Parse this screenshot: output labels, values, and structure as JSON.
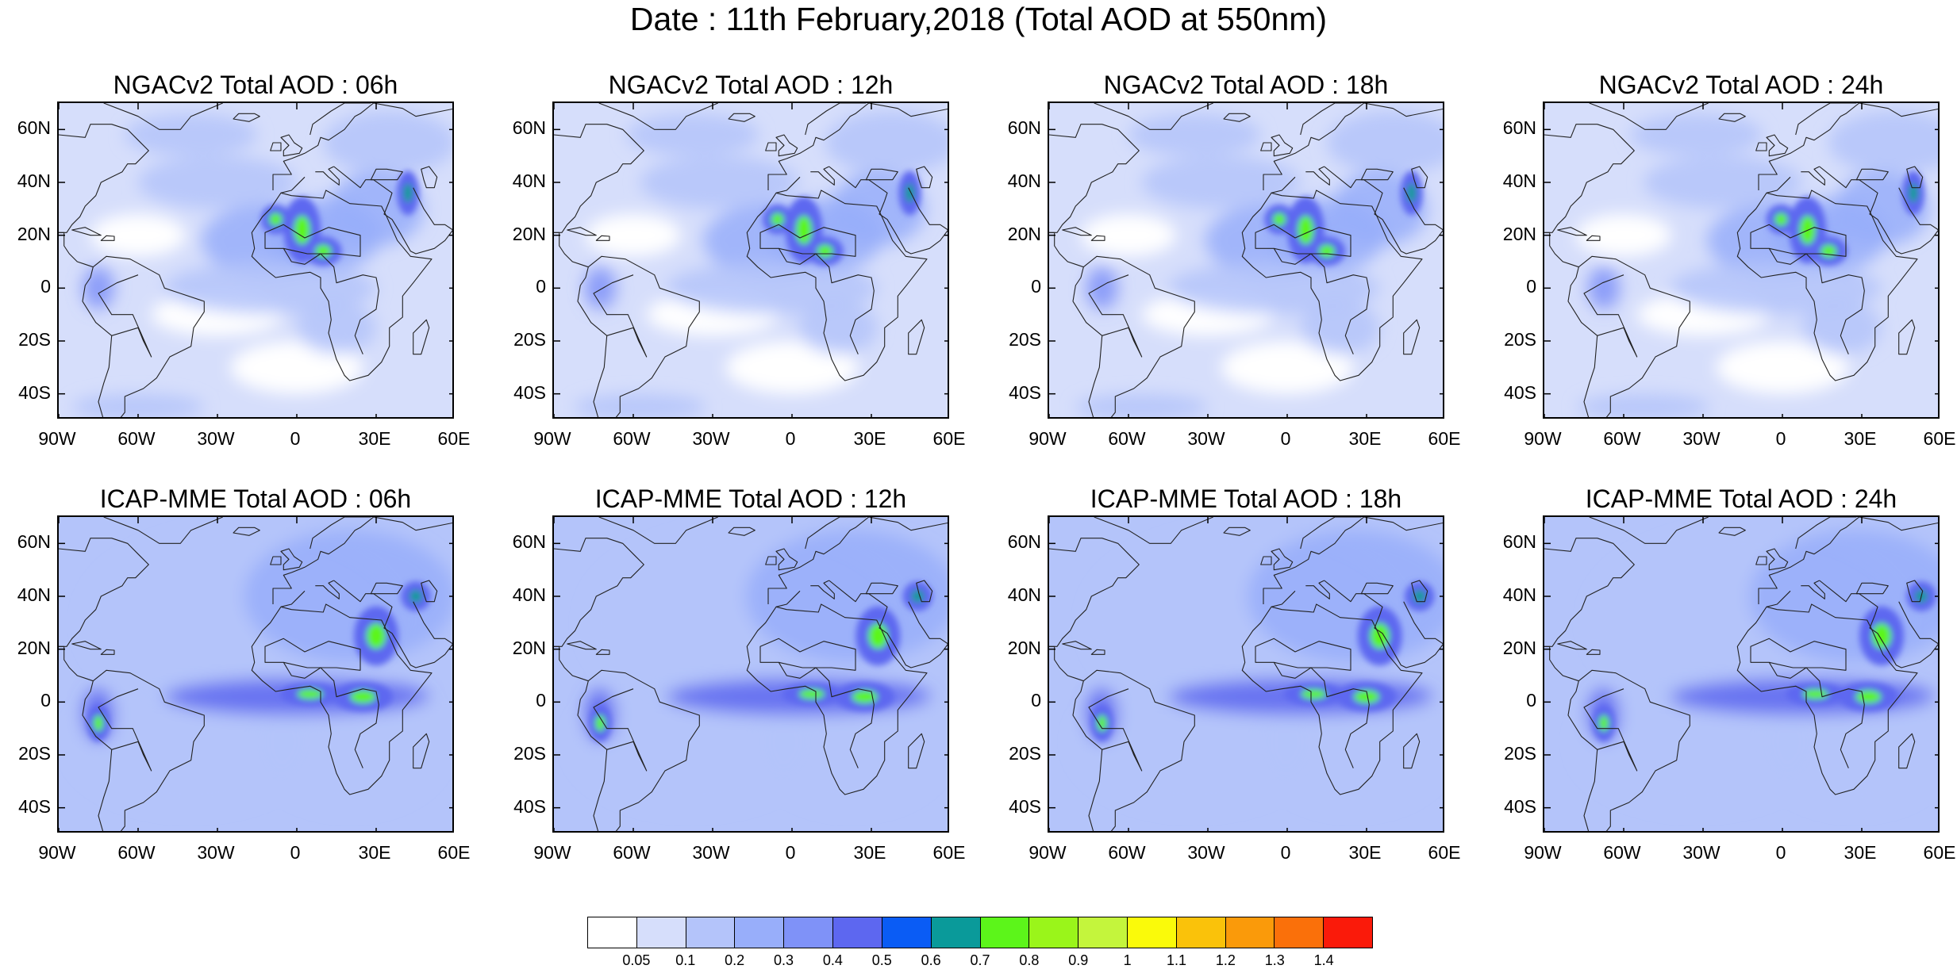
{
  "title": "Date : 11th February,2018 (Total AOD at 550nm)",
  "panels": [
    {
      "title": "NGACv2 Total AOD : 06h",
      "model": "ngac",
      "hour": "06"
    },
    {
      "title": "NGACv2 Total AOD : 12h",
      "model": "ngac",
      "hour": "12"
    },
    {
      "title": "NGACv2 Total AOD : 18h",
      "model": "ngac",
      "hour": "18"
    },
    {
      "title": "NGACv2 Total AOD : 24h",
      "model": "ngac",
      "hour": "24"
    },
    {
      "title": "ICAP-MME Total AOD : 06h",
      "model": "icap",
      "hour": "06"
    },
    {
      "title": "ICAP-MME Total AOD : 12h",
      "model": "icap",
      "hour": "12"
    },
    {
      "title": "ICAP-MME Total AOD : 18h",
      "model": "icap",
      "hour": "18"
    },
    {
      "title": "ICAP-MME Total AOD : 24h",
      "model": "icap",
      "hour": "24"
    }
  ],
  "map": {
    "lon_range": [
      -90,
      60
    ],
    "lat_range": [
      -50,
      70
    ],
    "lat_ticks": [
      "60N",
      "40N",
      "20N",
      "0",
      "20S",
      "40S"
    ],
    "lat_tick_values": [
      60,
      40,
      20,
      0,
      -20,
      -40
    ],
    "lon_ticks": [
      "90W",
      "60W",
      "30W",
      "0",
      "30E",
      "60E"
    ],
    "lon_tick_values": [
      -90,
      -60,
      -30,
      0,
      30,
      60
    ]
  },
  "colorbar": {
    "colors": [
      "#ffffff",
      "#d6defb",
      "#b4c4fa",
      "#98aefa",
      "#7f92f8",
      "#5d67f0",
      "#0a5cf5",
      "#0a9a9a",
      "#5cf51a",
      "#9af51a",
      "#c4f53c",
      "#fafa0a",
      "#fac20a",
      "#fa9a0a",
      "#fa700a",
      "#fa1a0a"
    ],
    "labels": [
      "0.05",
      "0.1",
      "0.2",
      "0.3",
      "0.4",
      "0.5",
      "0.6",
      "0.7",
      "0.8",
      "0.9",
      "1",
      "1.1",
      "1.2",
      "1.3",
      "1.4"
    ]
  }
}
